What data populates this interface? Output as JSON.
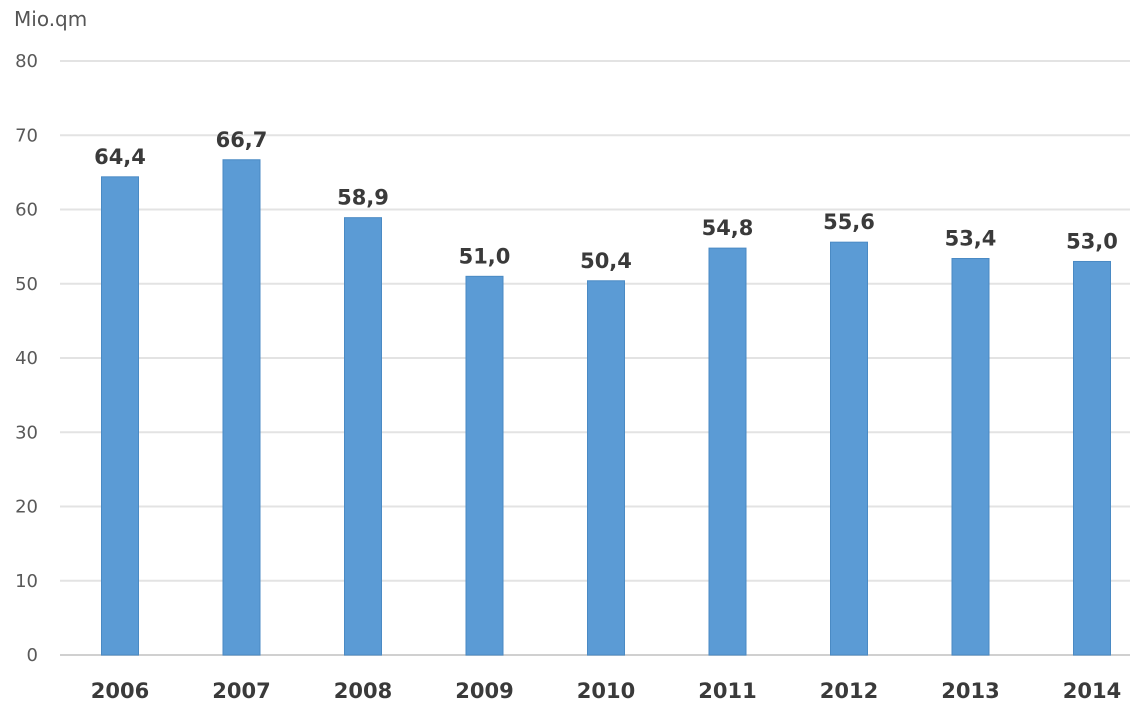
{
  "chart_data": {
    "type": "bar",
    "unit_label": "Mio.qm",
    "categories": [
      "2006",
      "2007",
      "2008",
      "2009",
      "2010",
      "2011",
      "2012",
      "2013",
      "2014"
    ],
    "values": [
      64.4,
      66.7,
      58.9,
      51.0,
      50.4,
      54.8,
      55.6,
      53.4,
      53.0
    ],
    "data_labels": [
      "64,4",
      "66,7",
      "58,9",
      "51,0",
      "50,4",
      "54,8",
      "55,6",
      "53,4",
      "53,0"
    ],
    "y_ticks": [
      "0",
      "10",
      "20",
      "30",
      "40",
      "50",
      "60",
      "70",
      "80"
    ],
    "ylim": [
      0,
      80
    ],
    "grid": true,
    "legend": false,
    "bar_color": "#5b9bd5",
    "bar_border_color": "#4a8ac4"
  }
}
